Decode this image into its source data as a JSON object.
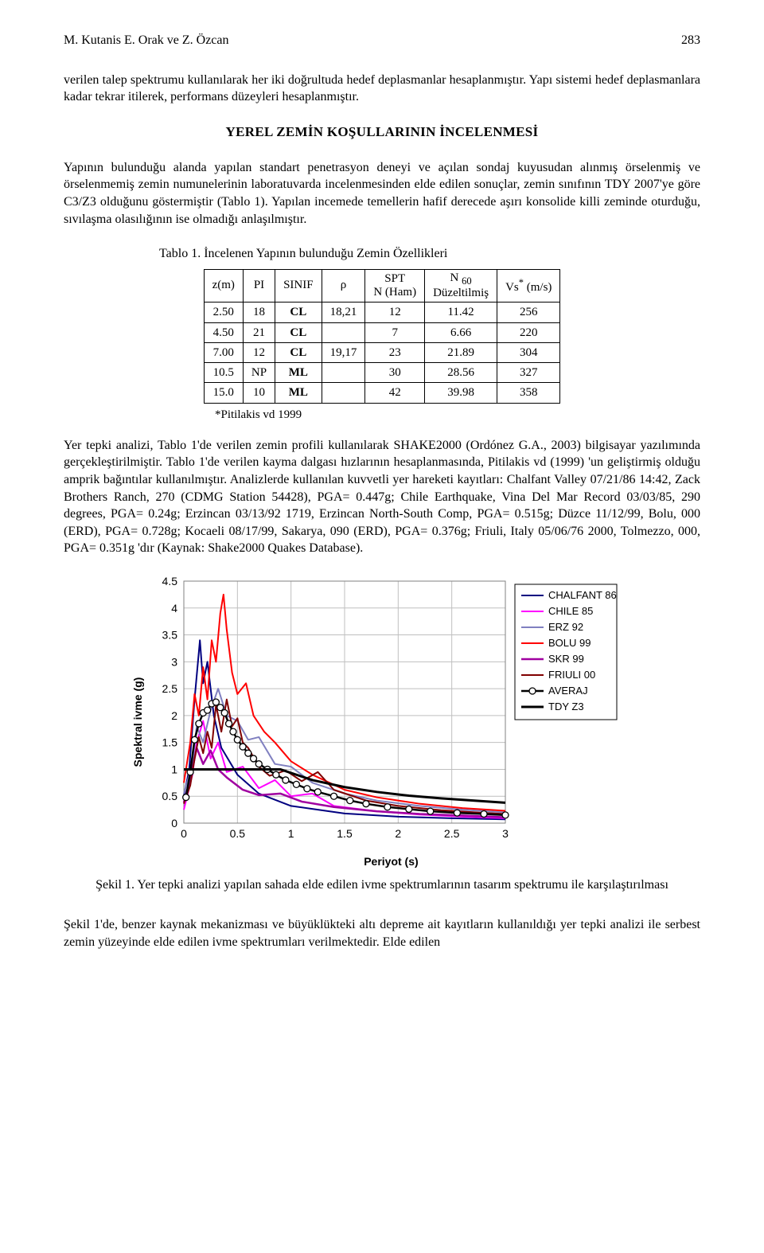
{
  "header": {
    "authors": "M. Kutanis E. Orak ve Z. Özcan",
    "page_no": "283"
  },
  "p1": "verilen talep spektrumu kullanılarak her iki doğrultuda hedef deplasmanlar hesaplanmıştır. Yapı sistemi hedef deplasmanlara kadar tekrar itilerek, performans düzeyleri hesaplanmıştır.",
  "section_title": "YEREL ZEMİN KOŞULLARININ İNCELENMESİ",
  "p2": "Yapının bulunduğu alanda yapılan standart penetrasyon deneyi ve açılan sondaj kuyusudan alınmış örselenmiş ve örselenmemiş zemin numunelerinin laboratuvarda incelenmesinden elde edilen sonuçlar, zemin sınıfının TDY 2007'ye göre C3/Z3 olduğunu göstermiştir (Tablo 1). Yapılan incemede temellerin hafif derecede aşırı konsolide killi  zeminde oturduğu, sıvılaşma olasılığının ise olmadığı anlaşılmıştır.",
  "table": {
    "caption": "Tablo 1. İncelenen Yapının bulunduğu Zemin Özellikleri",
    "columns": [
      "z(m)",
      "PI",
      "SINIF",
      "ρ",
      "SPT\nN (Ham)",
      "N 60\nDüzeltilmiş",
      "Vs* (m/s)"
    ],
    "rows": [
      [
        "2.50",
        "18",
        "CL",
        "18,21",
        "12",
        "11.42",
        "256"
      ],
      [
        "4.50",
        "21",
        "CL",
        "",
        "7",
        "6.66",
        "220"
      ],
      [
        "7.00",
        "12",
        "CL",
        "19,17",
        "23",
        "21.89",
        "304"
      ],
      [
        "10.5",
        "NP",
        "ML",
        "",
        "30",
        "28.56",
        "327"
      ],
      [
        "15.0",
        "10",
        "ML",
        "",
        "42",
        "39.98",
        "358"
      ]
    ],
    "footnote": "*Pitilakis vd 1999"
  },
  "p3": "Yer tepki analizi, Tablo 1'de verilen zemin profili kullanılarak SHAKE2000 (Ordónez G.A., 2003) bilgisayar yazılımında gerçekleştirilmiştir. Tablo 1'de verilen kayma dalgası hızlarının hesaplanmasında, Pitilakis vd (1999) 'un geliştirmiş olduğu amprik bağıntılar kullanılmıştır. Analizlerde kullanılan kuvvetli yer hareketi kayıtları: Chalfant Valley 07/21/86 14:42, Zack Brothers Ranch, 270 (CDMG Station 54428), PGA= 0.447g; Chile Earthquake, Vina Del Mar Record 03/03/85, 290 degrees, PGA= 0.24g; Erzincan 03/13/92 1719, Erzincan North-South Comp, PGA= 0.515g; Düzce 11/12/99, Bolu, 000 (ERD), PGA= 0.728g; Kocaeli 08/17/99, Sakarya, 090 (ERD), PGA= 0.376g; Friuli, Italy 05/06/76 2000, Tolmezzo, 000, PGA= 0.351g 'dır (Kaynak: Shake2000 Quakes Database).",
  "chart": {
    "type": "line",
    "ylabel": "Spektral ivme (g)",
    "xlabel": "Periyot (s)",
    "xlim": [
      0,
      3
    ],
    "ylim": [
      0,
      4.5
    ],
    "xticks": [
      0,
      0.5,
      1,
      1.5,
      2,
      2.5,
      3
    ],
    "yticks": [
      0,
      0.5,
      1,
      1.5,
      2,
      2.5,
      3,
      3.5,
      4,
      4.5
    ],
    "plot_bg": "#ffffff",
    "grid_color": "#bfbfbf",
    "grid_width": 1,
    "tick_fontsize": 14,
    "legend_fontsize": 13,
    "legend_border": "#000000",
    "line_width": 2,
    "series": [
      {
        "name": "CHALFANT 86",
        "color": "#000080",
        "width": 2,
        "pts": [
          [
            0,
            0.5
          ],
          [
            0.05,
            1.0
          ],
          [
            0.1,
            2.3
          ],
          [
            0.15,
            3.4
          ],
          [
            0.18,
            2.6
          ],
          [
            0.22,
            3.0
          ],
          [
            0.28,
            2.0
          ],
          [
            0.35,
            1.4
          ],
          [
            0.5,
            0.9
          ],
          [
            0.7,
            0.55
          ],
          [
            1.0,
            0.32
          ],
          [
            1.5,
            0.18
          ],
          [
            2.0,
            0.12
          ],
          [
            2.5,
            0.09
          ],
          [
            3.0,
            0.07
          ]
        ]
      },
      {
        "name": "CHILE 85",
        "color": "#ff00ff",
        "width": 2,
        "pts": [
          [
            0,
            0.25
          ],
          [
            0.08,
            0.9
          ],
          [
            0.12,
            1.5
          ],
          [
            0.18,
            1.9
          ],
          [
            0.25,
            1.2
          ],
          [
            0.32,
            1.5
          ],
          [
            0.4,
            0.95
          ],
          [
            0.55,
            1.05
          ],
          [
            0.7,
            0.65
          ],
          [
            0.85,
            0.8
          ],
          [
            1.0,
            0.5
          ],
          [
            1.2,
            0.55
          ],
          [
            1.4,
            0.32
          ],
          [
            1.8,
            0.22
          ],
          [
            2.2,
            0.16
          ],
          [
            2.6,
            0.12
          ],
          [
            3.0,
            0.09
          ]
        ]
      },
      {
        "name": "ERZ 92",
        "color": "#8080c0",
        "width": 2,
        "pts": [
          [
            0,
            0.55
          ],
          [
            0.08,
            1.1
          ],
          [
            0.12,
            1.8
          ],
          [
            0.18,
            1.5
          ],
          [
            0.25,
            2.1
          ],
          [
            0.32,
            2.5
          ],
          [
            0.4,
            2.0
          ],
          [
            0.5,
            1.9
          ],
          [
            0.6,
            1.55
          ],
          [
            0.7,
            1.6
          ],
          [
            0.85,
            1.1
          ],
          [
            1.0,
            1.05
          ],
          [
            1.2,
            0.75
          ],
          [
            1.5,
            0.55
          ],
          [
            1.8,
            0.42
          ],
          [
            2.2,
            0.32
          ],
          [
            2.6,
            0.25
          ],
          [
            3.0,
            0.2
          ]
        ]
      },
      {
        "name": "BOLU 99",
        "color": "#ff0000",
        "width": 2,
        "pts": [
          [
            0,
            0.75
          ],
          [
            0.06,
            1.5
          ],
          [
            0.1,
            2.4
          ],
          [
            0.14,
            2.0
          ],
          [
            0.18,
            2.9
          ],
          [
            0.22,
            2.3
          ],
          [
            0.26,
            3.4
          ],
          [
            0.3,
            3.0
          ],
          [
            0.34,
            3.9
          ],
          [
            0.37,
            4.25
          ],
          [
            0.4,
            3.6
          ],
          [
            0.45,
            2.8
          ],
          [
            0.5,
            2.4
          ],
          [
            0.58,
            2.6
          ],
          [
            0.65,
            2.0
          ],
          [
            0.75,
            1.7
          ],
          [
            0.85,
            1.5
          ],
          [
            1.0,
            1.15
          ],
          [
            1.2,
            0.9
          ],
          [
            1.5,
            0.62
          ],
          [
            1.8,
            0.48
          ],
          [
            2.2,
            0.36
          ],
          [
            2.6,
            0.28
          ],
          [
            3.0,
            0.23
          ]
        ]
      },
      {
        "name": "SKR 99",
        "color": "#a000a0",
        "width": 2.5,
        "pts": [
          [
            0,
            0.38
          ],
          [
            0.07,
            0.9
          ],
          [
            0.12,
            1.4
          ],
          [
            0.18,
            1.1
          ],
          [
            0.25,
            1.35
          ],
          [
            0.32,
            1.0
          ],
          [
            0.4,
            0.85
          ],
          [
            0.55,
            0.62
          ],
          [
            0.7,
            0.52
          ],
          [
            0.9,
            0.55
          ],
          [
            1.1,
            0.4
          ],
          [
            1.4,
            0.3
          ],
          [
            1.8,
            0.22
          ],
          [
            2.2,
            0.17
          ],
          [
            2.6,
            0.14
          ],
          [
            3.0,
            0.11
          ]
        ]
      },
      {
        "name": "FRIULI 00",
        "color": "#800000",
        "width": 2,
        "pts": [
          [
            0,
            0.36
          ],
          [
            0.06,
            0.7
          ],
          [
            0.1,
            1.2
          ],
          [
            0.14,
            1.6
          ],
          [
            0.18,
            1.3
          ],
          [
            0.22,
            1.7
          ],
          [
            0.26,
            1.4
          ],
          [
            0.3,
            2.2
          ],
          [
            0.35,
            1.7
          ],
          [
            0.4,
            2.3
          ],
          [
            0.45,
            1.8
          ],
          [
            0.5,
            1.95
          ],
          [
            0.55,
            1.5
          ],
          [
            0.6,
            1.4
          ],
          [
            0.7,
            1.05
          ],
          [
            0.8,
            0.88
          ],
          [
            0.95,
            0.98
          ],
          [
            1.1,
            0.78
          ],
          [
            1.25,
            0.95
          ],
          [
            1.4,
            0.62
          ],
          [
            1.7,
            0.42
          ],
          [
            2.0,
            0.32
          ],
          [
            2.4,
            0.24
          ],
          [
            2.8,
            0.19
          ],
          [
            3.0,
            0.17
          ]
        ]
      },
      {
        "name": "AVERAJ",
        "color": "#000000",
        "width": 2.5,
        "marker": "circle",
        "marker_size": 4,
        "marker_fill": "#ffffff",
        "pts": [
          [
            0.02,
            0.48
          ],
          [
            0.06,
            0.95
          ],
          [
            0.1,
            1.55
          ],
          [
            0.14,
            1.85
          ],
          [
            0.18,
            2.05
          ],
          [
            0.22,
            2.1
          ],
          [
            0.26,
            2.22
          ],
          [
            0.3,
            2.25
          ],
          [
            0.34,
            2.15
          ],
          [
            0.38,
            2.05
          ],
          [
            0.42,
            1.85
          ],
          [
            0.46,
            1.7
          ],
          [
            0.5,
            1.55
          ],
          [
            0.55,
            1.42
          ],
          [
            0.6,
            1.3
          ],
          [
            0.65,
            1.2
          ],
          [
            0.7,
            1.1
          ],
          [
            0.78,
            1.0
          ],
          [
            0.86,
            0.9
          ],
          [
            0.95,
            0.8
          ],
          [
            1.05,
            0.72
          ],
          [
            1.15,
            0.64
          ],
          [
            1.25,
            0.58
          ],
          [
            1.4,
            0.5
          ],
          [
            1.55,
            0.42
          ],
          [
            1.7,
            0.36
          ],
          [
            1.9,
            0.3
          ],
          [
            2.1,
            0.26
          ],
          [
            2.3,
            0.22
          ],
          [
            2.55,
            0.19
          ],
          [
            2.8,
            0.17
          ],
          [
            3.0,
            0.15
          ]
        ]
      },
      {
        "name": "TDY Z3",
        "color": "#000000",
        "width": 3,
        "pts": [
          [
            0,
            1.0
          ],
          [
            0.15,
            1.0
          ],
          [
            0.9,
            1.0
          ],
          [
            1.2,
            0.8
          ],
          [
            1.5,
            0.67
          ],
          [
            1.8,
            0.58
          ],
          [
            2.1,
            0.51
          ],
          [
            2.4,
            0.46
          ],
          [
            2.7,
            0.42
          ],
          [
            3.0,
            0.38
          ]
        ]
      }
    ]
  },
  "fig_caption": "Şekil 1. Yer tepki analizi yapılan sahada elde edilen ivme spektrumlarının tasarım spektrumu ile karşılaştırılması",
  "p4": "Şekil 1'de, benzer kaynak mekanizması ve büyüklükteki altı depreme ait kayıtların kullanıldığı yer tepki analizi ile serbest zemin yüzeyinde elde edilen ivme spektrumları verilmektedir. Elde edilen"
}
